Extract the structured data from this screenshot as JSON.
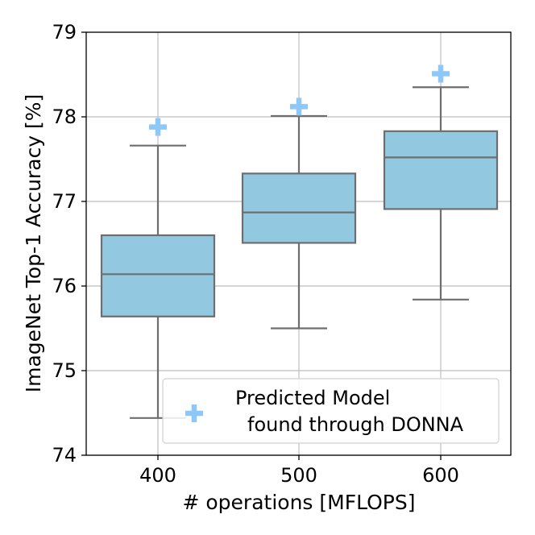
{
  "chart_data": {
    "type": "box",
    "title": "",
    "xlabel": "# operations [MFLOPS]",
    "ylabel": "ImageNet Top-1 Accuracy [%]",
    "ylim": [
      74,
      79
    ],
    "yticks": [
      74,
      75,
      76,
      77,
      78,
      79
    ],
    "grid": true,
    "categories": [
      "400",
      "500",
      "600"
    ],
    "boxes": [
      {
        "category": "400",
        "whisker_low": 74.44,
        "q1": 75.64,
        "median": 76.14,
        "q3": 76.6,
        "whisker_high": 77.66
      },
      {
        "category": "500",
        "whisker_low": 75.5,
        "q1": 76.51,
        "median": 76.87,
        "q3": 77.33,
        "whisker_high": 78.01
      },
      {
        "category": "600",
        "whisker_low": 75.84,
        "q1": 76.91,
        "median": 77.52,
        "q3": 77.83,
        "whisker_high": 78.35
      }
    ],
    "predicted": [
      {
        "category": "400",
        "value": 77.88
      },
      {
        "category": "500",
        "value": 78.12
      },
      {
        "category": "600",
        "value": 78.51
      }
    ],
    "legend": {
      "line1": "Predicted Model",
      "line2": "found through DONNA",
      "position": "lower-right"
    },
    "colors": {
      "box_fill": "#92C9E0",
      "box_edge": "#6E6E6E",
      "marker": "#8EC8F8",
      "grid": "#BEBEBE"
    }
  }
}
